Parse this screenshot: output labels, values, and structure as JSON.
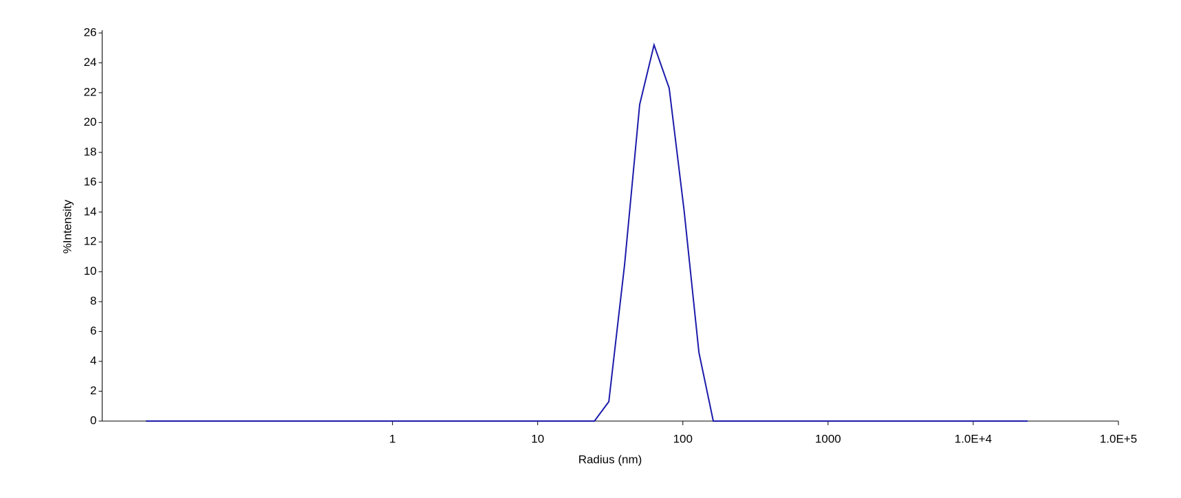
{
  "chart_data": {
    "type": "line",
    "x_label": "Radius (nm)",
    "y_label": "%Intensity",
    "x_scale": "log",
    "x": [
      0.02,
      24.6,
      30.9,
      39.7,
      50.4,
      63.3,
      80.5,
      102,
      129,
      162,
      23700
    ],
    "series": [
      {
        "name": "Intensity",
        "color": "#1a1aaa",
        "values": [
          0,
          0,
          1.3,
          10.5,
          21.2,
          25.2,
          22.3,
          14.1,
          4.6,
          0,
          0
        ]
      }
    ],
    "xlim": [
      0.01,
      100000
    ],
    "xticks": [
      1,
      10,
      100,
      1000,
      {
        "value": 10000,
        "label": "1.0E+4"
      },
      {
        "value": 100000,
        "label": "1.0E+5"
      }
    ],
    "ylim": [
      0,
      26
    ],
    "yticks": [
      0,
      2,
      4,
      6,
      8,
      10,
      12,
      14,
      16,
      18,
      20,
      22,
      24,
      26
    ],
    "grid": false
  }
}
